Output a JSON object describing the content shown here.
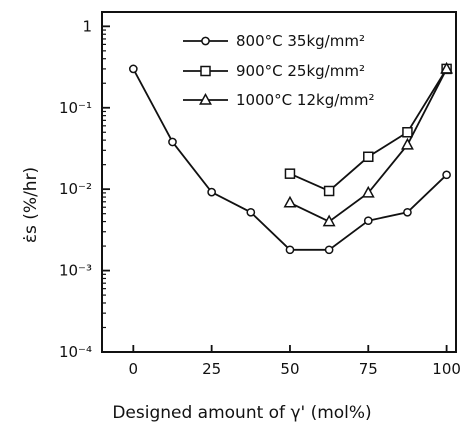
{
  "chart_data": {
    "type": "line",
    "title": "",
    "xlabel": "Designed amount of γ' (mol%)",
    "ylabel": "ε̇s (%/hr)",
    "xlim": [
      -10,
      103
    ],
    "ylim": [
      0.0001,
      1.5
    ],
    "yscale": "log",
    "x_ticks": [
      0,
      25,
      50,
      75,
      100
    ],
    "x_tick_labels": [
      "0",
      "25",
      "50",
      "75",
      "100"
    ],
    "y_ticks": [
      1,
      0.1,
      0.01,
      0.001,
      0.0001
    ],
    "y_tick_labels": [
      "1",
      "10⁻¹",
      "10⁻²",
      "10⁻³",
      "10⁻⁴"
    ],
    "legend_position": "top-right",
    "grid": false,
    "series": [
      {
        "name": "800°C  35kg/mm²",
        "marker": "circle",
        "x": [
          0,
          12.5,
          25,
          37.5,
          50,
          62.5,
          75,
          87.5,
          100
        ],
        "y": [
          0.3,
          0.038,
          0.0092,
          0.0052,
          0.0018,
          0.0018,
          0.0041,
          0.0052,
          0.015
        ]
      },
      {
        "name": "900°C  25kg/mm²",
        "marker": "square",
        "x": [
          50,
          62.5,
          75,
          87.5,
          100
        ],
        "y": [
          0.0155,
          0.0095,
          0.025,
          0.05,
          0.3
        ]
      },
      {
        "name": "1000°C  12kg/mm²",
        "marker": "triangle",
        "x": [
          50,
          62.5,
          75,
          87.5,
          100
        ],
        "y": [
          0.0068,
          0.004,
          0.009,
          0.035,
          0.3
        ]
      }
    ]
  }
}
